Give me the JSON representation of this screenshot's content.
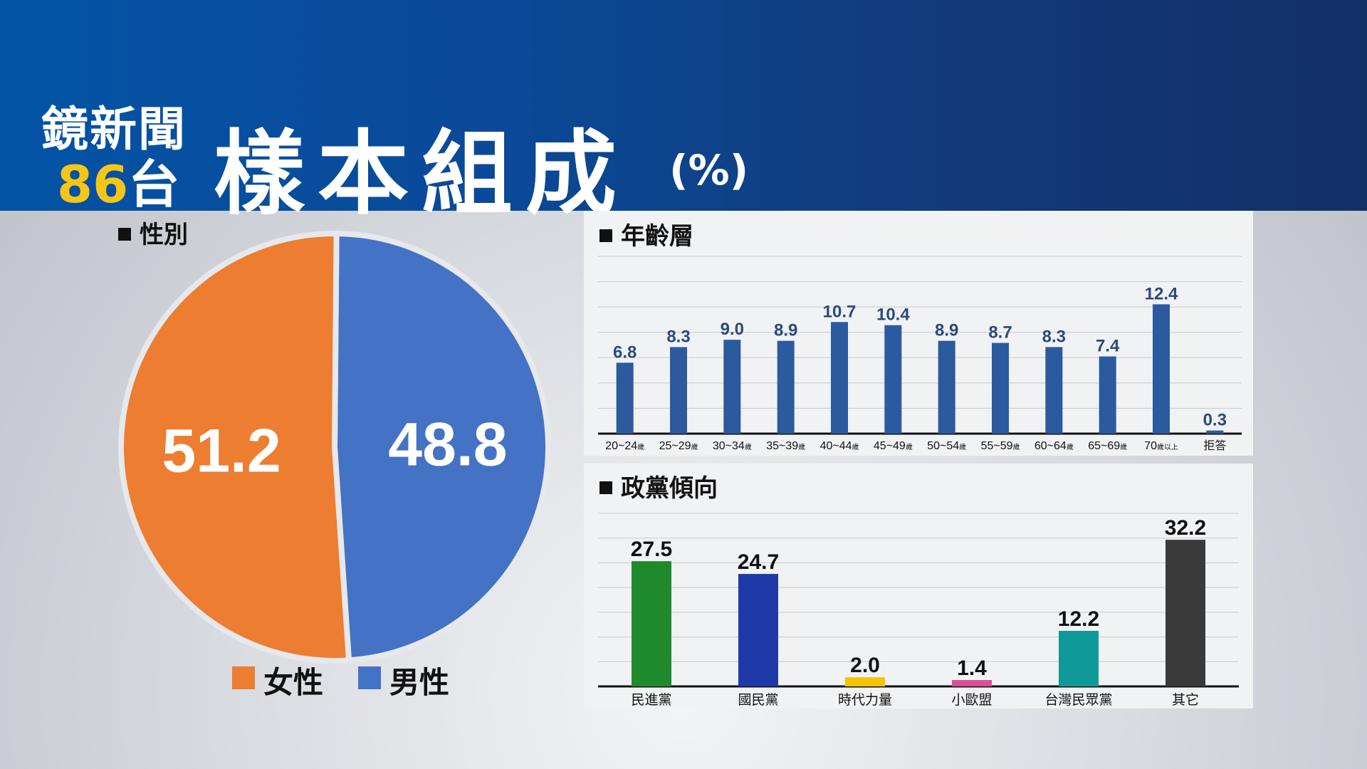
{
  "header": {
    "brand_line1": "鏡新聞",
    "brand_number": "86",
    "brand_suffix": "台",
    "title": "樣本組成",
    "unit": "(%)"
  },
  "colors": {
    "female": "#ed7d31",
    "male": "#4472c4",
    "age_bar": "#2b5a9e",
    "dpp": "#1f8a2c",
    "kmt": "#1f3aa8",
    "npp": "#f5c400",
    "tsp": "#d94f9a",
    "tpp": "#0f9999",
    "other": "#3a3a3a"
  },
  "chart_data": [
    {
      "type": "pie",
      "title": "性別",
      "slices": [
        {
          "label": "女性",
          "value": 51.2,
          "color": "#ed7d31"
        },
        {
          "label": "男性",
          "value": 48.8,
          "color": "#4472c4"
        }
      ]
    },
    {
      "type": "bar",
      "title": "年齡層",
      "categories": [
        {
          "main": "20~24",
          "suffix": "歲"
        },
        {
          "main": "25~29",
          "suffix": "歲"
        },
        {
          "main": "30~34",
          "suffix": "歲"
        },
        {
          "main": "35~39",
          "suffix": "歲"
        },
        {
          "main": "40~44",
          "suffix": "歲"
        },
        {
          "main": "45~49",
          "suffix": "歲"
        },
        {
          "main": "50~54",
          "suffix": "歲"
        },
        {
          "main": "55~59",
          "suffix": "歲"
        },
        {
          "main": "60~64",
          "suffix": "歲"
        },
        {
          "main": "65~69",
          "suffix": "歲"
        },
        {
          "main": "70",
          "suffix": "歲以上"
        },
        {
          "main": "拒答",
          "suffix": ""
        }
      ],
      "values": [
        6.8,
        8.3,
        9.0,
        8.9,
        10.7,
        10.4,
        8.9,
        8.7,
        8.3,
        7.4,
        12.4,
        0.3
      ],
      "labels": [
        "6.8",
        "8.3",
        "9.0",
        "8.9",
        "10.7",
        "10.4",
        "8.9",
        "8.7",
        "8.3",
        "7.4",
        "12.4",
        "0.3"
      ],
      "ylim": [
        0,
        17
      ],
      "grid": true
    },
    {
      "type": "bar",
      "title": "政黨傾向",
      "categories": [
        "民進黨",
        "國民黨",
        "時代力量",
        "小歐盟",
        "台灣民眾黨",
        "其它"
      ],
      "values": [
        27.5,
        24.7,
        2.0,
        1.4,
        12.2,
        32.2
      ],
      "labels": [
        "27.5",
        "24.7",
        "2.0",
        "1.4",
        "12.2",
        "32.2"
      ],
      "colors": [
        "#1f8a2c",
        "#1f3aa8",
        "#f5c400",
        "#d94f9a",
        "#0f9999",
        "#3a3a3a"
      ],
      "ylim": [
        0,
        38
      ],
      "grid": true
    }
  ]
}
